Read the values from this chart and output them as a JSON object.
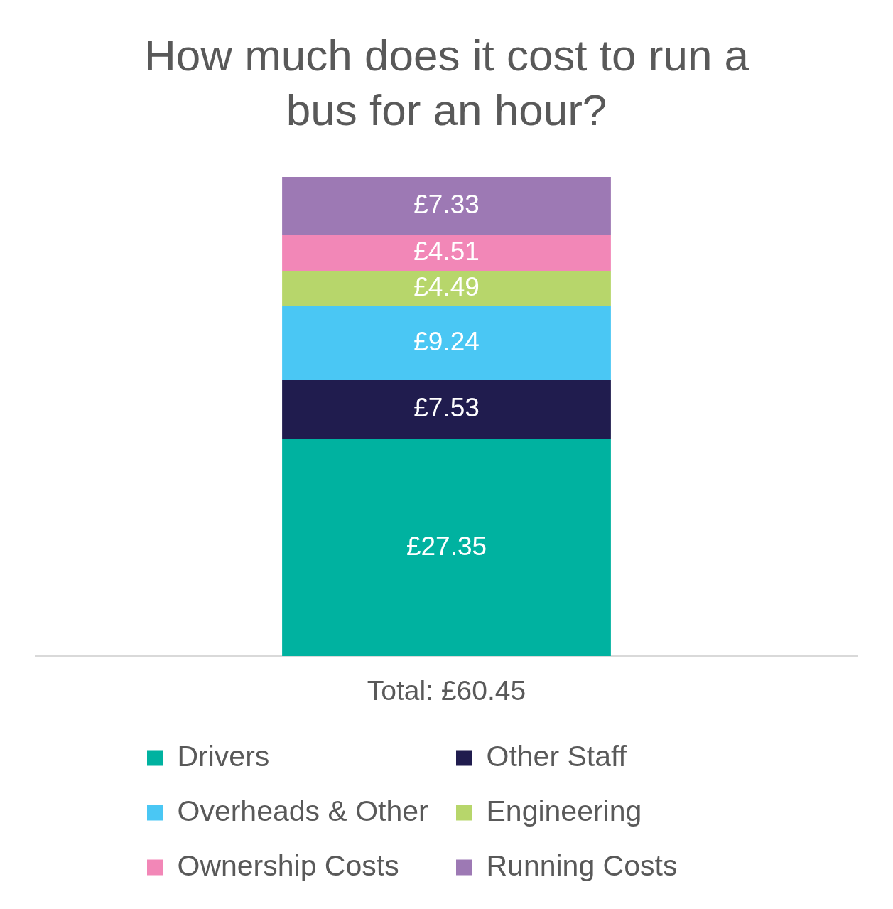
{
  "chart_data": {
    "type": "bar",
    "title": "How much does it cost to run a bus for an hour?",
    "categories": [
      null
    ],
    "totals": [
      "Total: £60.45"
    ],
    "stacked": true,
    "grid": false,
    "legend": "bottom",
    "tick_labels": false,
    "series": [
      {
        "name": "Drivers",
        "color": "#00b2a0",
        "values": [
          27.35
        ],
        "value_labels": [
          "£27.35"
        ]
      },
      {
        "name": "Other Staff",
        "color": "#201c4e",
        "values": [
          7.53
        ],
        "value_labels": [
          "£7.53"
        ]
      },
      {
        "name": "Overheads & Other",
        "color": "#4ac7f4",
        "values": [
          9.24
        ],
        "value_labels": [
          "£9.24"
        ]
      },
      {
        "name": "Engineering",
        "color": "#b7d66b",
        "values": [
          4.49
        ],
        "value_labels": [
          "£4.49"
        ]
      },
      {
        "name": "Ownership Costs",
        "color": "#f287b7",
        "values": [
          4.51
        ],
        "value_labels": [
          "£4.51"
        ]
      },
      {
        "name": "Running Costs",
        "color": "#9d79b4",
        "values": [
          7.33
        ],
        "value_labels": [
          "£7.33"
        ]
      }
    ]
  }
}
